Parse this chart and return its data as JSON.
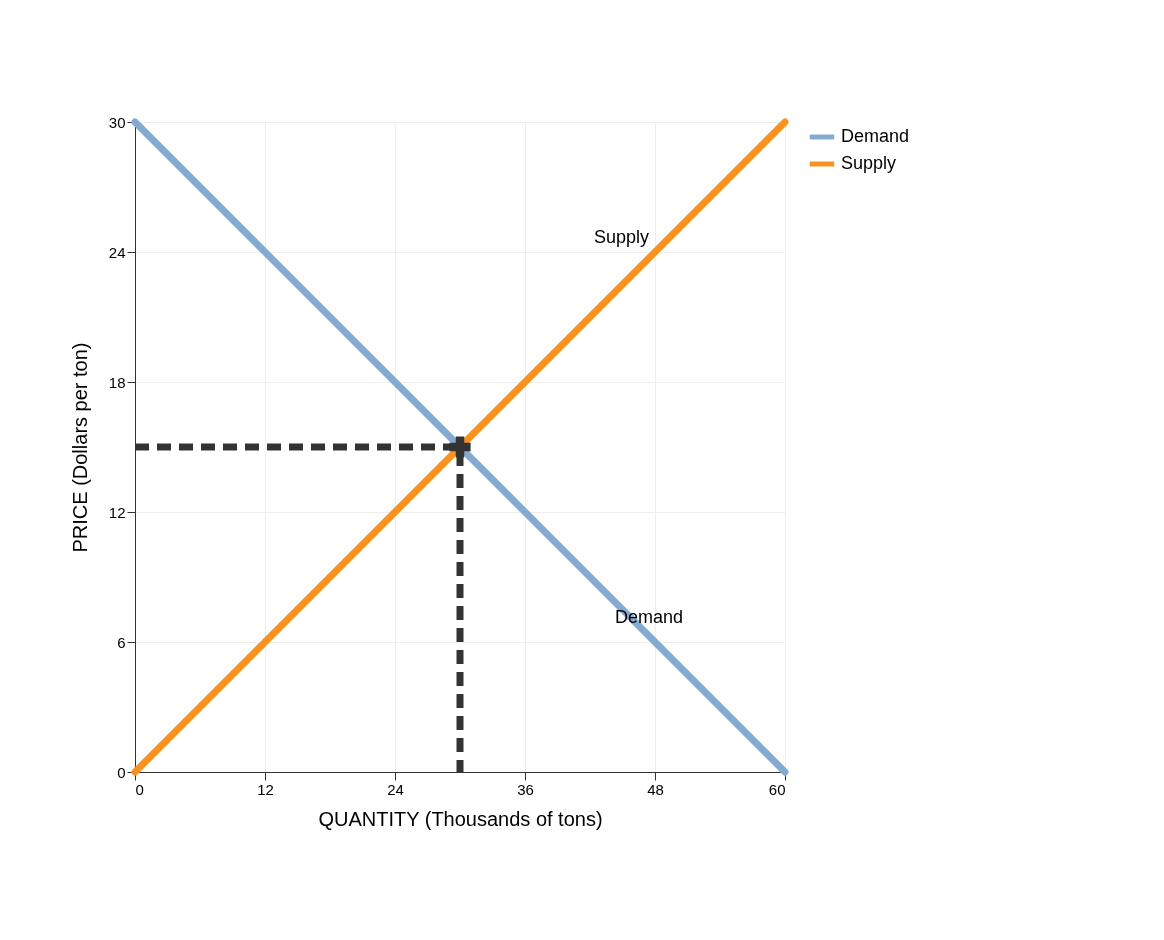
{
  "chart_data": {
    "type": "line",
    "xlabel": "QUANTITY (Thousands of tons)",
    "ylabel": "PRICE (Dollars per ton)",
    "series": [
      {
        "name": "Demand",
        "color": "#84aad2",
        "x": [
          0,
          60
        ],
        "values": [
          30,
          0
        ]
      },
      {
        "name": "Supply",
        "color": "#f7931e",
        "x": [
          0,
          60
        ],
        "values": [
          0,
          30
        ]
      },
      {
        "type": "line",
        "color": "#333333",
        "line_style": "dashed",
        "x": [
          0,
          30,
          30
        ],
        "values": [
          15,
          15,
          0
        ]
      },
      {
        "type": "scatter",
        "color": "#333333",
        "marker": "cross",
        "x": [
          30
        ],
        "values": [
          15
        ]
      }
    ],
    "xlim": [
      0,
      60
    ],
    "xticks": [
      0,
      12,
      24,
      36,
      48,
      60
    ],
    "ylim": [
      0,
      30
    ],
    "yticks": [
      0,
      6,
      12,
      18,
      24,
      30
    ],
    "grid": true,
    "legend": "right"
  }
}
